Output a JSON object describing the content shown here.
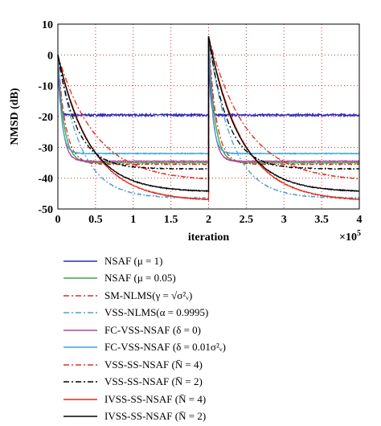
{
  "chart_data": {
    "type": "line",
    "xlabel": "iteration",
    "ylabel": "NMSD (dB)",
    "x_multiplier": "×10^5",
    "xlim": [
      0,
      4
    ],
    "ylim": [
      -50,
      10
    ],
    "xticks": [
      "0",
      "0.5",
      "1",
      "1.5",
      "2",
      "2.5",
      "3",
      "3.5",
      "4"
    ],
    "yticks": [
      "10",
      "0",
      "-10",
      "-20",
      "-30",
      "-40",
      "-50"
    ],
    "grid": true,
    "change_point": 2,
    "series": [
      {
        "name": "NSAF (μ = 1)",
        "color": "#2b2bb5",
        "dash": "solid",
        "start": 0,
        "restart": 6,
        "steady": -19.5,
        "tau": 0.02
      },
      {
        "name": "NSAF (μ = 0.05)",
        "color": "#3ca83c",
        "dash": "solid",
        "start": 0,
        "restart": 6,
        "steady": -35,
        "tau": 0.08
      },
      {
        "name": "SM-NLMS(γ = √σ²ᵥ)",
        "color": "#d03030",
        "dash": "dashdot",
        "start": 0,
        "restart": 6,
        "steady": -35.5,
        "tau": 0.1
      },
      {
        "name": "VSS-NLMS(α = 0.9995)",
        "color": "#4aa0d0",
        "dash": "dashdot",
        "start": 0,
        "restart": 6,
        "steady": -46.5,
        "tau": 0.3
      },
      {
        "name": "FC-VSS-NSAF (δ = 0)",
        "color": "#b040a0",
        "dash": "solid",
        "start": 0,
        "restart": 6,
        "steady": -34.5,
        "tau": 0.06
      },
      {
        "name": "FC-VSS-NSAF (δ = 0.01σ²ᵥ)",
        "color": "#3aa6d8",
        "dash": "solid",
        "start": 0,
        "restart": 6,
        "steady": -32,
        "tau": 0.05
      },
      {
        "name": "VSS-SS-NSAF (N̄ = 4)",
        "color": "#e03020",
        "dash": "dashdot",
        "start": 0,
        "restart": 6,
        "steady": -41,
        "tau": 0.5
      },
      {
        "name": "VSS-SS-NSAF (N̄ = 2)",
        "color": "#000000",
        "dash": "dashdot",
        "start": 0,
        "restart": 6,
        "steady": -37,
        "tau": 0.25
      },
      {
        "name": "IVSS-SS-NSAF (N̄ = 4)",
        "color": "#e02a1a",
        "dash": "solid",
        "start": 0,
        "restart": 6,
        "steady": -47.5,
        "tau": 0.45
      },
      {
        "name": "IVSS-SS-NSAF (N̄ = 2)",
        "color": "#000000",
        "dash": "solid",
        "start": 0,
        "restart": 6,
        "steady": -44.5,
        "tau": 0.4
      }
    ]
  }
}
